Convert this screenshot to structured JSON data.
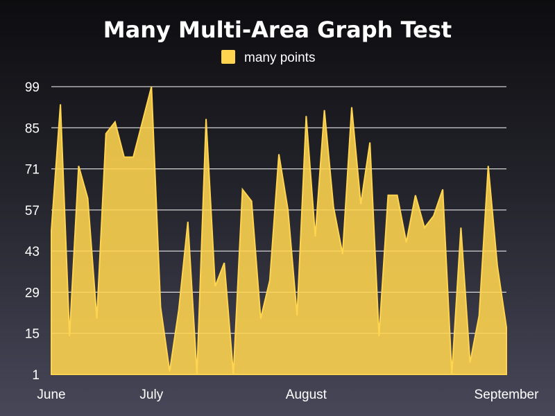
{
  "chart_data": {
    "type": "area",
    "title": "Many Multi-Area Graph Test",
    "xlabel": "",
    "ylabel": "",
    "y_ticks": [
      1,
      15,
      29,
      43,
      57,
      71,
      85,
      99
    ],
    "ylim": [
      1,
      99
    ],
    "x_ticks": [
      "June",
      "July",
      "August",
      "September"
    ],
    "x_tick_index": [
      0,
      11,
      28,
      50
    ],
    "grid": true,
    "legend_position": "top-center",
    "series": [
      {
        "name": "many points",
        "color": "#ffd54f",
        "values": [
          50,
          93,
          14,
          72,
          61,
          20,
          83,
          87,
          75,
          75,
          87,
          100,
          24,
          2,
          23,
          53,
          1,
          88,
          31,
          39,
          1,
          64,
          60,
          20,
          33,
          76,
          57,
          21,
          89,
          48,
          91,
          58,
          42,
          92,
          59,
          80,
          14,
          62,
          62,
          46,
          62,
          51,
          55,
          64,
          1,
          51,
          5,
          21,
          72,
          38,
          17
        ]
      }
    ]
  }
}
